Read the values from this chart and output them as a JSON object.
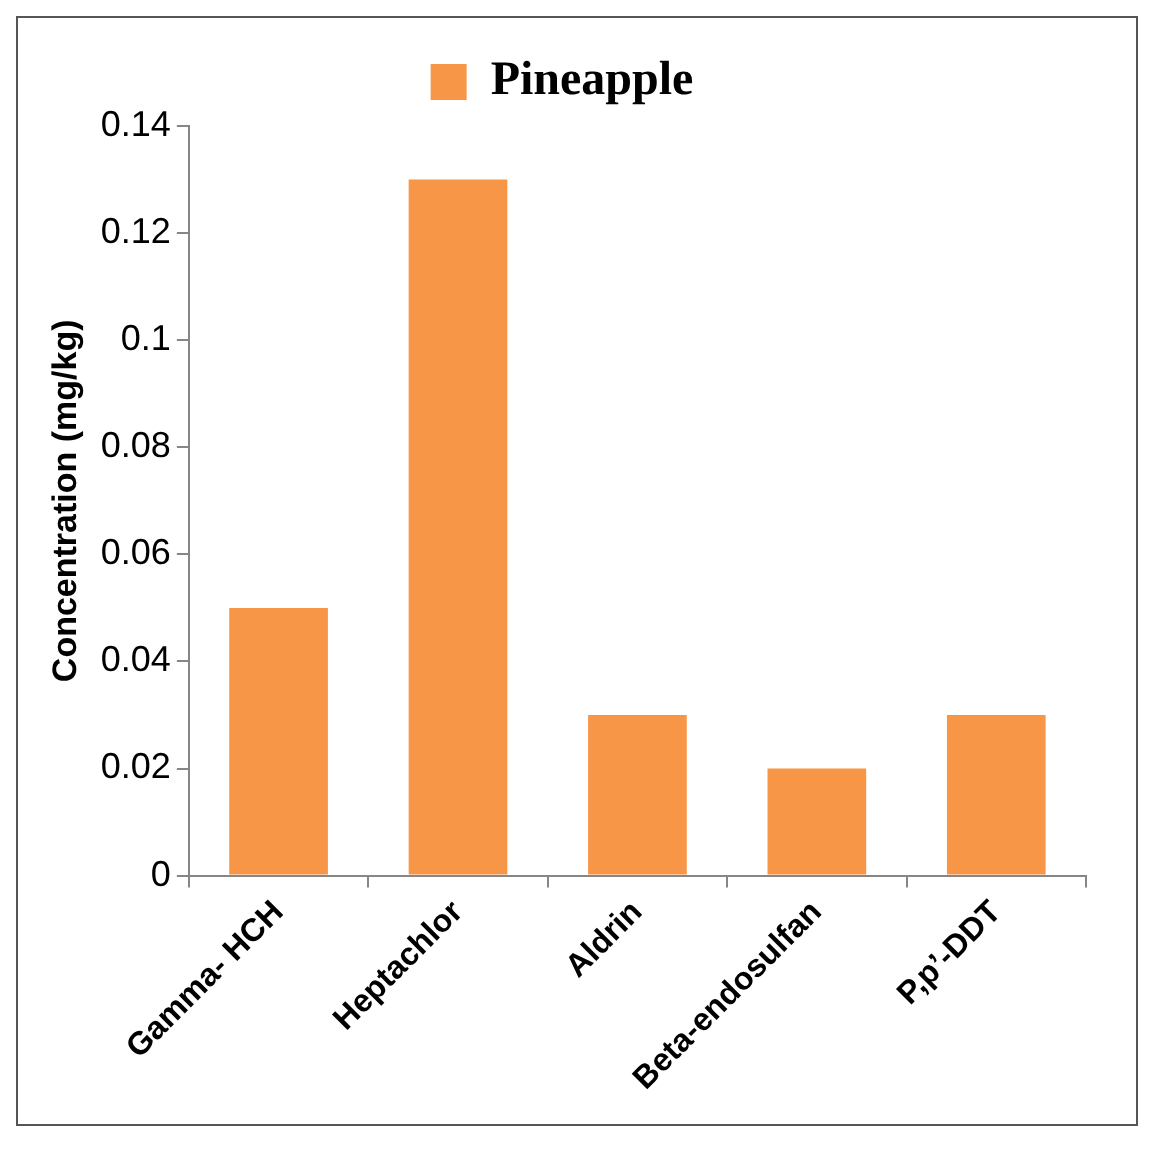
{
  "chart_data": {
    "type": "bar",
    "ylabel": "Concentration (mg/kg)",
    "categories": [
      "Gamma- HCH",
      "Heptachlor",
      "Aldrin",
      "Beta-endosulfan",
      "P,p’-DDT"
    ],
    "series": [
      {
        "name": "Pineapple",
        "color": "#f79646",
        "values": [
          0.05,
          0.13,
          0.03,
          0.02,
          0.03
        ]
      }
    ],
    "ylim": [
      0,
      0.14
    ],
    "yticks": [
      0,
      0.02,
      0.04,
      0.06,
      0.08,
      0.1,
      0.12,
      0.14
    ],
    "grid": false,
    "legend": "top"
  }
}
